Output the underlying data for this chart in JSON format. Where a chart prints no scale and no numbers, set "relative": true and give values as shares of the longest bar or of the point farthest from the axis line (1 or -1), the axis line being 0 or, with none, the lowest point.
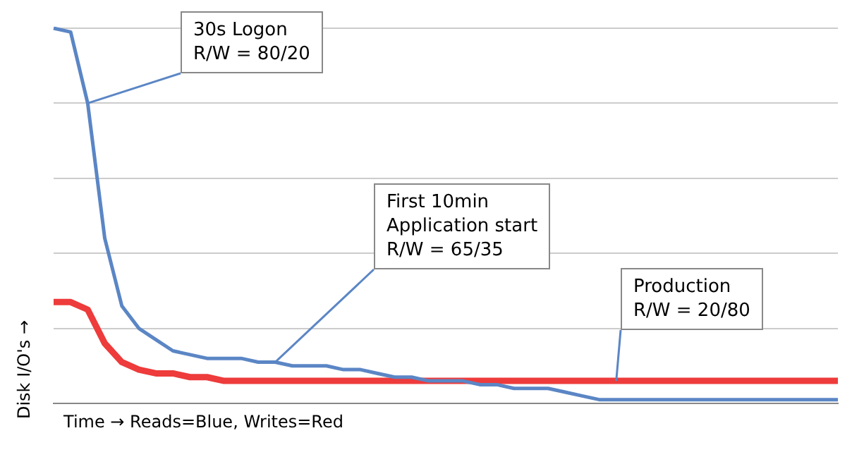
{
  "chart_data": {
    "type": "line",
    "relative": true,
    "xlabel": "Time → Reads=Blue, Writes=Red",
    "ylabel": "Disk I/O's →",
    "categories": [
      null,
      null,
      null,
      null,
      null,
      null,
      null,
      null,
      null,
      null,
      null,
      null,
      null,
      null,
      null,
      null,
      null,
      null,
      null,
      null,
      null,
      null,
      null,
      null,
      null,
      null,
      null,
      null,
      null,
      null,
      null,
      null,
      null,
      null,
      null,
      null,
      null,
      null,
      null,
      null,
      null,
      null,
      null,
      null,
      null,
      null,
      null
    ],
    "series": [
      {
        "color": "#5b86c5",
        "values": [
          1,
          0.99,
          0.8,
          0.44,
          0.26,
          0.2,
          0.17,
          0.14,
          0.13,
          0.12,
          0.12,
          0.12,
          0.11,
          0.11,
          0.1,
          0.1,
          0.1,
          0.09,
          0.09,
          0.08,
          0.07,
          0.07,
          0.06,
          0.06,
          0.06,
          0.05,
          0.05,
          0.04,
          0.04,
          0.04,
          0.03,
          0.02,
          0.01,
          0.01,
          0.01,
          0.01,
          0.01,
          0.01,
          0.01,
          0.01,
          0.01,
          0.01,
          0.01,
          0.01,
          0.01,
          0.01,
          0.01
        ]
      },
      {
        "color": "#ee3b3b",
        "values": [
          0.27,
          0.27,
          0.25,
          0.16,
          0.11,
          0.09,
          0.08,
          0.08,
          0.07,
          0.07,
          0.06,
          0.06,
          0.06,
          0.06,
          0.06,
          0.06,
          0.06,
          0.06,
          0.06,
          0.06,
          0.06,
          0.06,
          0.06,
          0.06,
          0.06,
          0.06,
          0.06,
          0.06,
          0.06,
          0.06,
          0.06,
          0.06,
          0.06,
          0.06,
          0.06,
          0.06,
          0.06,
          0.06,
          0.06,
          0.06,
          0.06,
          0.06,
          0.06,
          0.06,
          0.06,
          0.06,
          0.06
        ]
      }
    ],
    "annotations": [
      "30s Logon\nR/W = 80/20",
      "First 10min\nApplication start\nR/W = 65/35",
      "Production\nR/W = 20/80"
    ],
    "grid": "y",
    "legend": false,
    "marker": "none",
    "line_style": "solid"
  }
}
